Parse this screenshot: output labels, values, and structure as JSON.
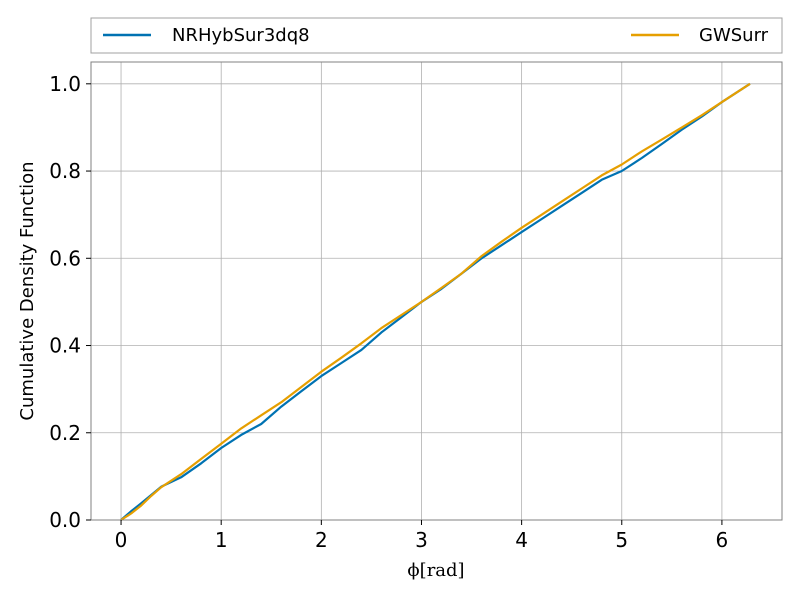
{
  "chart_data": {
    "type": "line",
    "title": "",
    "xlabel": "ϕ[rad]",
    "ylabel": "Cumulative Density Function",
    "xlim": [
      -0.3,
      6.6
    ],
    "ylim": [
      0.0,
      1.05
    ],
    "x_ticks": [
      0,
      1,
      2,
      3,
      4,
      5,
      6
    ],
    "y_ticks": [
      0.0,
      0.2,
      0.4,
      0.6,
      0.8,
      1.0
    ],
    "x_tick_labels": [
      "0",
      "1",
      "2",
      "3",
      "4",
      "5",
      "6"
    ],
    "y_tick_labels": [
      "0.0",
      "0.2",
      "0.4",
      "0.6",
      "0.8",
      "1.0"
    ],
    "grid": true,
    "legend_placement": "top, above plot",
    "series": [
      {
        "name": "NRHybSur3dq8",
        "color": "#0072b2",
        "x": [
          0,
          0.1,
          0.2,
          0.3,
          0.4,
          0.6,
          0.8,
          1.0,
          1.2,
          1.4,
          1.6,
          1.8,
          2.0,
          2.2,
          2.4,
          2.6,
          2.8,
          3.0,
          3.2,
          3.4,
          3.6,
          3.8,
          4.0,
          4.2,
          4.4,
          4.6,
          4.8,
          5.0,
          5.2,
          5.4,
          5.6,
          5.8,
          6.0,
          6.28
        ],
        "y": [
          0.0,
          0.02,
          0.038,
          0.057,
          0.076,
          0.098,
          0.13,
          0.165,
          0.195,
          0.22,
          0.26,
          0.295,
          0.33,
          0.36,
          0.39,
          0.43,
          0.465,
          0.5,
          0.53,
          0.565,
          0.6,
          0.63,
          0.66,
          0.69,
          0.72,
          0.75,
          0.78,
          0.8,
          0.83,
          0.862,
          0.895,
          0.925,
          0.958,
          1.0
        ]
      },
      {
        "name": "GWSurr",
        "color": "#e69f00",
        "x": [
          0,
          0.1,
          0.2,
          0.3,
          0.4,
          0.6,
          0.8,
          1.0,
          1.2,
          1.4,
          1.6,
          1.8,
          2.0,
          2.2,
          2.4,
          2.6,
          2.8,
          3.0,
          3.2,
          3.4,
          3.6,
          3.8,
          4.0,
          4.2,
          4.4,
          4.6,
          4.8,
          5.0,
          5.2,
          5.4,
          5.6,
          5.8,
          6.0,
          6.28
        ],
        "y": [
          0.0,
          0.015,
          0.033,
          0.055,
          0.075,
          0.105,
          0.14,
          0.175,
          0.21,
          0.24,
          0.27,
          0.305,
          0.34,
          0.372,
          0.405,
          0.44,
          0.47,
          0.5,
          0.532,
          0.565,
          0.605,
          0.638,
          0.67,
          0.7,
          0.73,
          0.76,
          0.79,
          0.815,
          0.845,
          0.872,
          0.9,
          0.928,
          0.958,
          1.0
        ]
      }
    ]
  }
}
